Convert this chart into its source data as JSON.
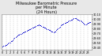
{
  "title": "Milwaukee Barometric Pressure\nper Minute\n(24 Hours)",
  "title_fontsize": 3.5,
  "bg_color": "#e8e8e8",
  "plot_bg_color": "#ffffff",
  "dot_color": "#0000cc",
  "dot_size": 0.6,
  "x_label_fontsize": 2.5,
  "y_label_fontsize": 2.5,
  "pressure_detailed": [
    29.42,
    29.43,
    29.44,
    29.45,
    29.46,
    29.47,
    29.48,
    29.5,
    29.51,
    29.53,
    29.54,
    29.56,
    29.58,
    29.6,
    29.62,
    29.64,
    29.65,
    29.66,
    29.67,
    29.68,
    29.69,
    29.7,
    29.71,
    29.72,
    29.73,
    29.74,
    29.75,
    29.76,
    29.77,
    29.78,
    29.79,
    29.8,
    29.81,
    29.82,
    29.83,
    29.84,
    29.85,
    29.86,
    29.87,
    29.88,
    29.87,
    29.86,
    29.85,
    29.84,
    29.83,
    29.82,
    29.81,
    29.8,
    29.79,
    29.78,
    29.77,
    29.76,
    29.75,
    29.74,
    29.73,
    29.72,
    29.73,
    29.74,
    29.76,
    29.78,
    29.8,
    29.82,
    29.84,
    29.86,
    29.88,
    29.89,
    29.9,
    29.91,
    29.92,
    29.93,
    29.94,
    29.95,
    29.96,
    29.97,
    29.98,
    29.99,
    30.0,
    30.01,
    30.02,
    30.01,
    30.0,
    29.99,
    29.98,
    29.97,
    29.96,
    29.95,
    29.94,
    29.92,
    29.9,
    29.88,
    29.89,
    29.9,
    29.91,
    29.92,
    29.93,
    29.94
  ],
  "ylim": [
    29.35,
    30.1
  ],
  "yticks": [
    29.4,
    29.5,
    29.6,
    29.7,
    29.8,
    29.9,
    30.0,
    30.1
  ],
  "ytick_labels": [
    "29.40",
    "29.50",
    "29.60",
    "29.70",
    "29.80",
    "29.90",
    "30.00",
    "30.10"
  ],
  "xlim": [
    -1,
    96
  ],
  "xtick_positions": [
    0,
    4,
    8,
    12,
    16,
    20,
    24,
    28,
    32,
    36,
    40,
    44,
    48,
    52,
    56,
    60,
    64,
    68,
    72,
    76,
    80,
    84,
    88,
    92
  ],
  "xtick_labels": [
    "0",
    "1",
    "2",
    "3",
    "4",
    "5",
    "6",
    "7",
    "8",
    "9",
    "10",
    "11",
    "12",
    "13",
    "14",
    "15",
    "16",
    "17",
    "18",
    "19",
    "20",
    "21",
    "22",
    "23"
  ],
  "grid_positions": [
    0,
    4,
    8,
    12,
    16,
    20,
    24,
    28,
    32,
    36,
    40,
    44,
    48,
    52,
    56,
    60,
    64,
    68,
    72,
    76,
    80,
    84,
    88,
    92
  ]
}
